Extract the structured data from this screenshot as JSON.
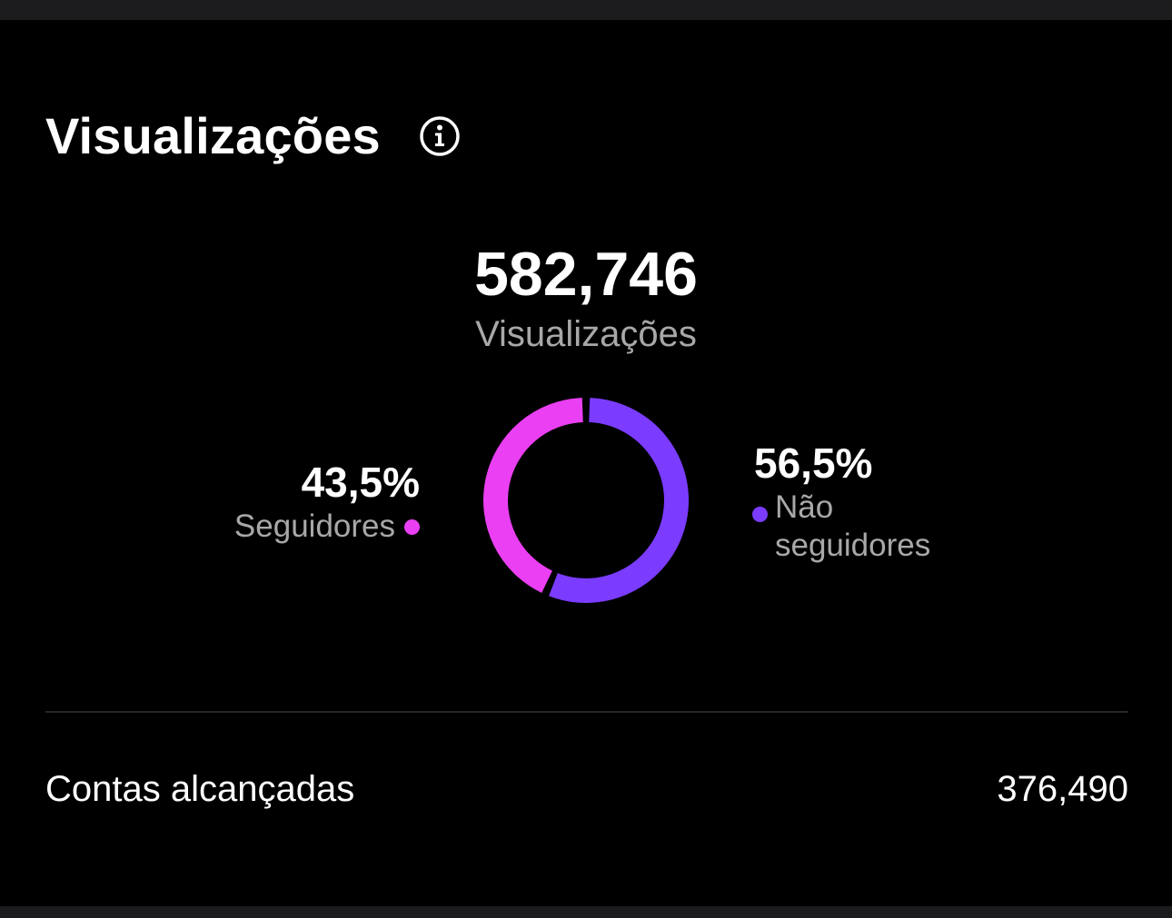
{
  "header": {
    "title": "Visualizações",
    "info_icon": "info-circle-icon"
  },
  "summary": {
    "total_value": "582,746",
    "total_label": "Visualizações"
  },
  "breakdown": {
    "followers": {
      "percent_text": "43,5%",
      "label": "Seguidores",
      "color": "#ea3ff3",
      "fraction": 0.435
    },
    "non_followers": {
      "percent_text": "56,5%",
      "label": "Não seguidores",
      "color": "#7b3cff",
      "fraction": 0.565
    }
  },
  "metrics": {
    "accounts_reached_label": "Contas alcançadas",
    "accounts_reached_value": "376,490"
  },
  "colors": {
    "background": "#000000",
    "secondary_text": "#a8a8a8",
    "divider": "#262626"
  }
}
